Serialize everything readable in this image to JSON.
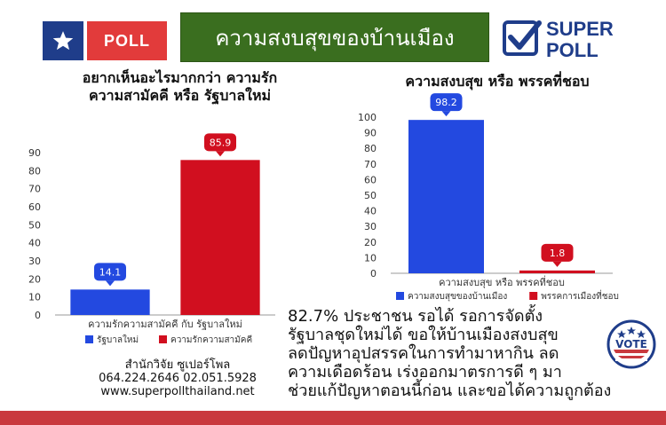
{
  "header": {
    "left_logo_text": "POLL",
    "banner_title": "ความสงบสุขของบ้านเมือง",
    "right_logo_line1": "SUPER",
    "right_logo_line2": "POLL",
    "colors": {
      "banner": "#3a6e1f",
      "logo_blue": "#1f3d8a",
      "logo_red": "#e23b3b"
    }
  },
  "chart_data": [
    {
      "type": "bar",
      "title": "อยากเห็นอะไรมากกว่า ความรักความสามัคคี หรือ รัฐบาลใหม่",
      "xlabel": "ความรักความสามัคคี กับ รัฐบาลใหม่",
      "ylim": [
        0,
        90
      ],
      "yticks": [
        0,
        10,
        20,
        30,
        40,
        50,
        60,
        70,
        80,
        90
      ],
      "series": [
        {
          "name": "รัฐบาลใหม่",
          "value": 14.1,
          "label": "14.1",
          "color": "#2349e0"
        },
        {
          "name": "ความรักความสามัคคี",
          "value": 85.9,
          "label": "85.9",
          "color": "#d10f1f"
        }
      ],
      "legend": "bottom"
    },
    {
      "type": "bar",
      "title": "ความสงบสุข หรือ พรรคที่ชอบ",
      "xlabel": "ความสงบสุข หรือ พรรคที่ชอบ",
      "ylim": [
        0,
        100
      ],
      "yticks": [
        0,
        10,
        20,
        30,
        40,
        50,
        60,
        70,
        80,
        90,
        100
      ],
      "series": [
        {
          "name": "ความสงบสุขของบ้านเมือง",
          "value": 98.2,
          "label": "98.2",
          "color": "#2349e0"
        },
        {
          "name": "พรรคการเมืองที่ชอบ",
          "value": 1.8,
          "label": "1.8",
          "color": "#d10f1f"
        }
      ],
      "legend": "bottom"
    }
  ],
  "source": {
    "line1": "สำนักวิจัย ซูเปอร์โพล",
    "line2": "064.224.2646   02.051.5928",
    "line3": "www.superpollthailand.net"
  },
  "summary": {
    "line1": "82.7% ประชาชน รอได้ รอการจัดตั้ง",
    "line2": "รัฐบาลชุดใหม่ได้ ขอให้บ้านเมืองสงบสุข",
    "line3": "ลดปัญหาอุปสรรคในการทำมาหากิน ลด",
    "line4": "ความเดือดร้อน เร่งออกมาตรการดี ๆ มา",
    "line5": "ช่วยแก้ปัญหาตอนนี้ก่อน และขอได้ความถูกต้อง"
  },
  "vote_badge": {
    "text": "VOTE"
  }
}
